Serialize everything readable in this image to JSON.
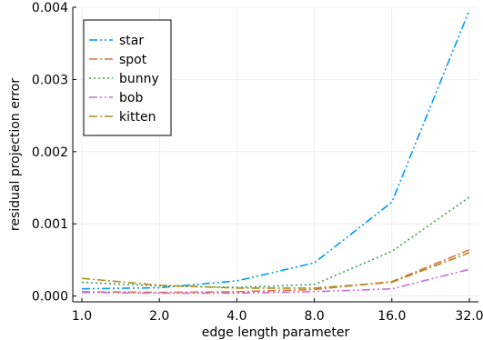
{
  "chart_data": {
    "type": "line",
    "title": "",
    "xlabel": "edge length parameter",
    "ylabel": "residual projection error",
    "x_scale": "log2",
    "x": [
      1.0,
      2.0,
      4.0,
      8.0,
      16.0,
      32.0
    ],
    "x_tick_labels": [
      "1.0",
      "2.0",
      "4.0",
      "8.0",
      "16.0",
      "32.0"
    ],
    "ylim": [
      0,
      0.004
    ],
    "y_ticks": [
      0.0,
      0.001,
      0.002,
      0.003,
      0.004
    ],
    "y_tick_labels": [
      "0.000",
      "0.001",
      "0.002",
      "0.003",
      "0.004"
    ],
    "grid": true,
    "legend_position": "top-left",
    "series": [
      {
        "name": "star",
        "color": "#009AFA",
        "dash": "dash-dot-dot",
        "values": [
          0.0001,
          0.000115,
          0.00021,
          0.00046,
          0.0013,
          0.00396
        ]
      },
      {
        "name": "spot",
        "color": "#E26F46",
        "dash": "dash-dot",
        "values": [
          6e-05,
          5e-05,
          6e-05,
          9e-05,
          0.0002,
          0.00064
        ]
      },
      {
        "name": "bunny",
        "color": "#3DA44D",
        "dash": "dot",
        "values": [
          0.00019,
          0.00014,
          0.00012,
          0.00016,
          0.00062,
          0.00137
        ]
      },
      {
        "name": "bob",
        "color": "#C271D2",
        "dash": "dash-dot-dot",
        "values": [
          5e-05,
          4e-05,
          4e-05,
          6e-05,
          0.0001,
          0.00037
        ]
      },
      {
        "name": "kitten",
        "color": "#AC8D18",
        "dash": "dash-dot",
        "values": [
          0.000245,
          0.00015,
          0.00011,
          0.00011,
          0.00019,
          0.0006
        ]
      }
    ]
  }
}
